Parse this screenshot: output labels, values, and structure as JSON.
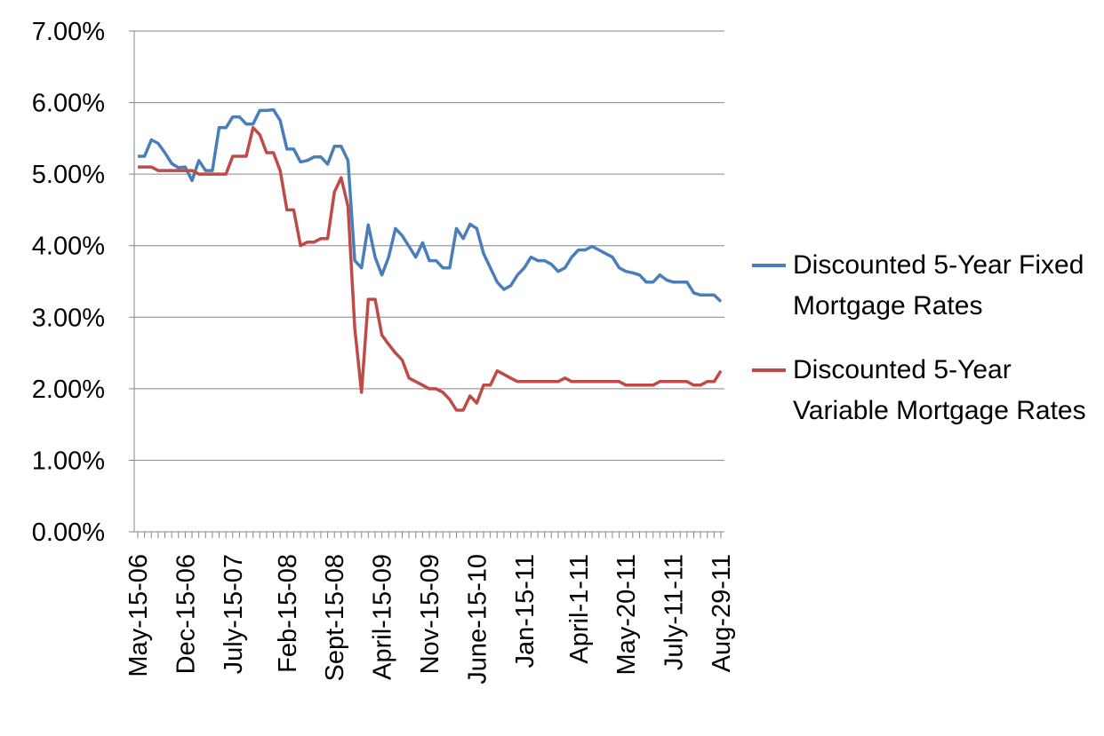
{
  "chart_data": {
    "type": "line",
    "ylim": [
      0,
      7
    ],
    "y_ticks": [
      "0.00%",
      "1.00%",
      "2.00%",
      "3.00%",
      "4.00%",
      "5.00%",
      "6.00%",
      "7.00%"
    ],
    "grid": "horizontal",
    "legend_position": "right",
    "x_tick_labels": [
      "May-15-06",
      "Dec-15-06",
      "July-15-07",
      "Feb-15-08",
      "Sept-15-08",
      "April-15-09",
      "Nov-15-09",
      "June-15-10",
      "Jan-15-11",
      "April-1-11",
      "May-20-11",
      "July-11-11",
      "Aug-29-11"
    ],
    "series": [
      {
        "name": "Discounted 5-Year Fixed Mortgage Rates",
        "color": "#4a7ebb",
        "values": [
          5.25,
          5.25,
          5.48,
          5.43,
          5.3,
          5.15,
          5.09,
          5.1,
          4.91,
          5.19,
          5.05,
          5.05,
          5.65,
          5.65,
          5.8,
          5.8,
          5.7,
          5.7,
          5.89,
          5.89,
          5.9,
          5.75,
          5.35,
          5.35,
          5.17,
          5.19,
          5.24,
          5.24,
          5.14,
          5.39,
          5.39,
          5.19,
          3.79,
          3.69,
          4.29,
          3.84,
          3.59,
          3.84,
          4.24,
          4.14,
          3.99,
          3.84,
          4.04,
          3.79,
          3.79,
          3.69,
          3.69,
          4.24,
          4.1,
          4.3,
          4.24,
          3.89,
          3.69,
          3.49,
          3.39,
          3.44,
          3.59,
          3.69,
          3.84,
          3.79,
          3.79,
          3.74,
          3.64,
          3.69,
          3.84,
          3.94,
          3.94,
          3.99,
          3.94,
          3.89,
          3.84,
          3.69,
          3.64,
          3.62,
          3.59,
          3.49,
          3.49,
          3.59,
          3.52,
          3.49,
          3.49,
          3.49,
          3.34,
          3.31,
          3.31,
          3.31,
          3.22
        ]
      },
      {
        "name": "Discounted 5-Year Variable Mortgage Rates",
        "color": "#be4b48",
        "values": [
          5.1,
          5.1,
          5.1,
          5.05,
          5.05,
          5.05,
          5.05,
          5.05,
          5.05,
          5.0,
          5.0,
          5.0,
          5.0,
          5.0,
          5.25,
          5.25,
          5.25,
          5.65,
          5.55,
          5.3,
          5.3,
          5.05,
          4.5,
          4.5,
          4.0,
          4.05,
          4.05,
          4.1,
          4.1,
          4.75,
          4.95,
          4.55,
          2.85,
          1.95,
          3.25,
          3.25,
          2.75,
          2.62,
          2.5,
          2.4,
          2.15,
          2.1,
          2.05,
          2.0,
          2.0,
          1.95,
          1.85,
          1.7,
          1.7,
          1.9,
          1.8,
          2.05,
          2.05,
          2.25,
          2.2,
          2.15,
          2.1,
          2.1,
          2.1,
          2.1,
          2.1,
          2.1,
          2.1,
          2.15,
          2.1,
          2.1,
          2.1,
          2.1,
          2.1,
          2.1,
          2.1,
          2.1,
          2.05,
          2.05,
          2.05,
          2.05,
          2.05,
          2.1,
          2.1,
          2.1,
          2.1,
          2.1,
          2.05,
          2.05,
          2.1,
          2.1,
          2.25
        ]
      }
    ]
  }
}
